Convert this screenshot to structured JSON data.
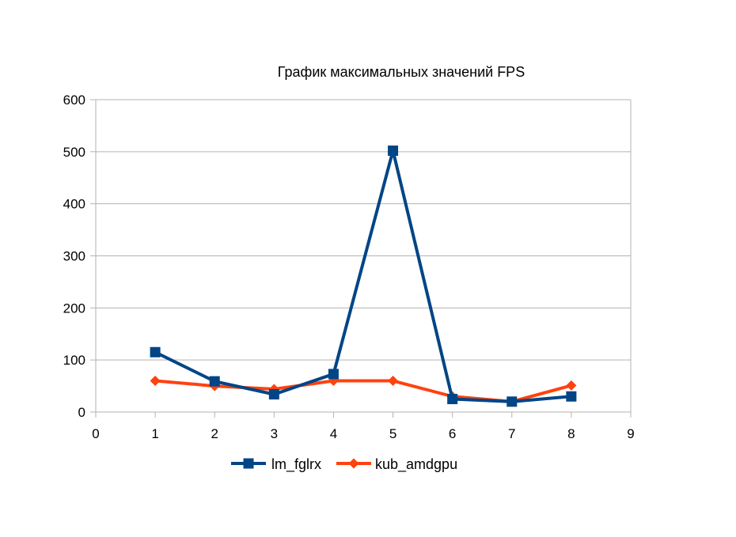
{
  "chart_data": {
    "type": "line",
    "title": "График максимальных значений FPS",
    "xlabel": "",
    "ylabel": "",
    "xlim": [
      0,
      9
    ],
    "ylim": [
      0,
      600
    ],
    "x_ticks": [
      "0",
      "1",
      "2",
      "3",
      "4",
      "5",
      "6",
      "7",
      "8",
      "9"
    ],
    "y_ticks": [
      "0",
      "100",
      "200",
      "300",
      "400",
      "500",
      "600"
    ],
    "x": [
      1,
      2,
      3,
      4,
      5,
      6,
      7,
      8
    ],
    "grid": "horizontal",
    "legend_position": "bottom",
    "series": [
      {
        "name": "lm_fglrx",
        "color": "#004586",
        "marker": "square",
        "values": [
          115,
          59,
          34,
          73,
          502,
          25,
          20,
          30
        ]
      },
      {
        "name": "kub_amdgpu",
        "color": "#ff420e",
        "marker": "diamond",
        "values": [
          60,
          50,
          44,
          60,
          60,
          30,
          20,
          51
        ]
      }
    ]
  }
}
